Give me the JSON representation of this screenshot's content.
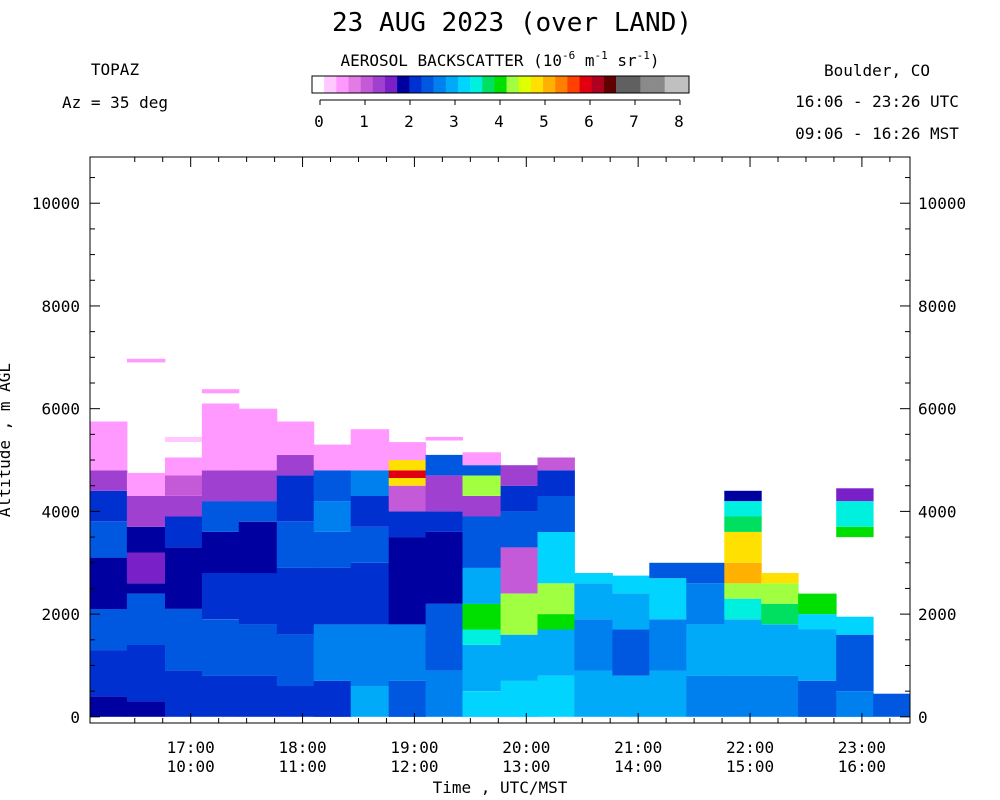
{
  "header": {
    "title": "23 AUG 2023 (over LAND)",
    "instrument": "TOPAZ",
    "azimuth": "Az =  35 deg",
    "location": "Boulder, CO",
    "utc_range": "16:06 - 23:26 UTC",
    "mst_range": "09:06 - 16:26 MST"
  },
  "colorbar": {
    "label_pre": "AEROSOL BACKSCATTER (10",
    "label_exp1": "-6",
    "label_mid1": " m",
    "label_exp2": "-1",
    "label_mid2": " sr",
    "label_exp3": "-1",
    "label_post": ")",
    "ticks": [
      "0",
      "1",
      "2",
      "3",
      "4",
      "5",
      "6",
      "7",
      "8"
    ],
    "colors": [
      "#ffffff",
      "#ffc8ff",
      "#ff99ff",
      "#e47ae4",
      "#c45ad8",
      "#a040d0",
      "#7a20c8",
      "#0000a0",
      "#0030d0",
      "#0058e0",
      "#0080ee",
      "#00aaf8",
      "#00d4ff",
      "#00f0e0",
      "#00e060",
      "#00e000",
      "#a0ff40",
      "#e0ff00",
      "#ffe000",
      "#ffb000",
      "#ff8000",
      "#ff4000",
      "#e00010",
      "#b00020",
      "#600000",
      "#606060",
      "#606060",
      "#8a8a8a",
      "#8a8a8a",
      "#c0c0c0",
      "#c0c0c0"
    ]
  },
  "axes": {
    "y_label": "Altitude , m AGL",
    "x_label": "Time , UTC/MST",
    "y_ticks": [
      "0",
      "2000",
      "4000",
      "6000",
      "8000",
      "10000"
    ],
    "x_ticks_utc": [
      "17:00",
      "18:00",
      "19:00",
      "20:00",
      "21:00",
      "22:00",
      "23:00"
    ],
    "x_ticks_mst": [
      "10:00",
      "11:00",
      "12:00",
      "13:00",
      "14:00",
      "15:00",
      "16:00"
    ]
  },
  "chart_data": {
    "type": "heatmap",
    "title": "23 AUG 2023 (over LAND)",
    "xlabel": "Time , UTC/MST",
    "ylabel": "Altitude , m AGL",
    "x_units": "hours UTC",
    "ylim": [
      0,
      11000
    ],
    "xlim": [
      16.1,
      23.43
    ],
    "zlim": [
      0,
      8
    ],
    "columns": [
      {
        "t0": 16.1,
        "t1": 16.43,
        "top": 5750,
        "layers": [
          [
            0,
            400,
            "#0000a0"
          ],
          [
            400,
            1300,
            "#0030d0"
          ],
          [
            1300,
            2100,
            "#0058e0"
          ],
          [
            2100,
            3100,
            "#0000a0"
          ],
          [
            3100,
            3800,
            "#0058e0"
          ],
          [
            3800,
            4400,
            "#0030d0"
          ],
          [
            4400,
            4800,
            "#a040d0"
          ],
          [
            4800,
            5750,
            "#ff99ff"
          ]
        ]
      },
      {
        "t0": 16.43,
        "t1": 16.77,
        "top": 4750,
        "layers": [
          [
            0,
            300,
            "#0000a0"
          ],
          [
            300,
            1400,
            "#0030d0"
          ],
          [
            1400,
            2400,
            "#0058e0"
          ],
          [
            2400,
            2600,
            "#0000a0"
          ],
          [
            2600,
            3200,
            "#7a20c8"
          ],
          [
            3200,
            3700,
            "#0000a0"
          ],
          [
            3700,
            4300,
            "#a040d0"
          ],
          [
            4300,
            4750,
            "#ff99ff"
          ]
        ],
        "extra": [
          [
            6900,
            6970,
            "#ff99ff"
          ]
        ]
      },
      {
        "t0": 16.77,
        "t1": 17.1,
        "top": 5050,
        "layers": [
          [
            0,
            900,
            "#0030d0"
          ],
          [
            900,
            2100,
            "#0058e0"
          ],
          [
            2100,
            3300,
            "#0000a0"
          ],
          [
            3300,
            3900,
            "#0030d0"
          ],
          [
            3900,
            4300,
            "#a040d0"
          ],
          [
            4300,
            4700,
            "#c45ad8"
          ],
          [
            4700,
            5050,
            "#ff99ff"
          ]
        ],
        "extra": [
          [
            5350,
            5450,
            "#ffc8ff"
          ]
        ]
      },
      {
        "t0": 17.1,
        "t1": 17.43,
        "top": 6100,
        "layers": [
          [
            0,
            800,
            "#0030d0"
          ],
          [
            800,
            1900,
            "#0058e0"
          ],
          [
            1900,
            2800,
            "#0030d0"
          ],
          [
            2800,
            3600,
            "#0000a0"
          ],
          [
            3600,
            4200,
            "#0058e0"
          ],
          [
            4200,
            4800,
            "#a040d0"
          ],
          [
            4800,
            6100,
            "#ff99ff"
          ]
        ],
        "extra": [
          [
            6300,
            6380,
            "#ff99ff"
          ]
        ]
      },
      {
        "t0": 17.43,
        "t1": 17.77,
        "top": 6000,
        "layers": [
          [
            0,
            800,
            "#0030d0"
          ],
          [
            800,
            1800,
            "#0058e0"
          ],
          [
            1800,
            2800,
            "#0030d0"
          ],
          [
            2800,
            3800,
            "#0000a0"
          ],
          [
            3800,
            4200,
            "#0058e0"
          ],
          [
            4200,
            4800,
            "#a040d0"
          ],
          [
            4800,
            6000,
            "#ff99ff"
          ]
        ]
      },
      {
        "t0": 17.77,
        "t1": 18.1,
        "top": 5750,
        "layers": [
          [
            0,
            600,
            "#0030d0"
          ],
          [
            600,
            1600,
            "#0058e0"
          ],
          [
            1600,
            2900,
            "#0030d0"
          ],
          [
            2900,
            3800,
            "#0058e0"
          ],
          [
            3800,
            4700,
            "#0030d0"
          ],
          [
            4700,
            5100,
            "#a040d0"
          ],
          [
            5100,
            5750,
            "#ff99ff"
          ]
        ]
      },
      {
        "t0": 18.1,
        "t1": 18.43,
        "top": 5300,
        "layers": [
          [
            0,
            700,
            "#0030d0"
          ],
          [
            700,
            1800,
            "#0080ee"
          ],
          [
            1800,
            2900,
            "#0030d0"
          ],
          [
            2900,
            3600,
            "#0058e0"
          ],
          [
            3600,
            4200,
            "#0080ee"
          ],
          [
            4200,
            4800,
            "#0058e0"
          ],
          [
            4800,
            5300,
            "#ff99ff"
          ]
        ]
      },
      {
        "t0": 18.43,
        "t1": 18.77,
        "top": 5600,
        "layers": [
          [
            0,
            600,
            "#00aaf8"
          ],
          [
            600,
            1800,
            "#0080ee"
          ],
          [
            1800,
            3000,
            "#0030d0"
          ],
          [
            3000,
            3700,
            "#0058e0"
          ],
          [
            3700,
            4300,
            "#0030d0"
          ],
          [
            4300,
            4800,
            "#0080ee"
          ],
          [
            4800,
            5600,
            "#ff99ff"
          ]
        ]
      },
      {
        "t0": 18.77,
        "t1": 19.1,
        "top": 5350,
        "layers": [
          [
            0,
            700,
            "#0058e0"
          ],
          [
            700,
            1800,
            "#0080ee"
          ],
          [
            1800,
            3500,
            "#0000a0"
          ],
          [
            3500,
            4000,
            "#0030d0"
          ],
          [
            4000,
            4500,
            "#c45ad8"
          ],
          [
            4500,
            4650,
            "#ffe000"
          ],
          [
            4650,
            4800,
            "#e00010"
          ],
          [
            4800,
            5000,
            "#ffe000"
          ],
          [
            5000,
            5350,
            "#ff99ff"
          ]
        ]
      },
      {
        "t0": 19.1,
        "t1": 19.43,
        "top": 5100,
        "layers": [
          [
            0,
            900,
            "#0080ee"
          ],
          [
            900,
            2200,
            "#0058e0"
          ],
          [
            2200,
            3600,
            "#0000a0"
          ],
          [
            3600,
            4000,
            "#0030d0"
          ],
          [
            4000,
            4700,
            "#a040d0"
          ],
          [
            4700,
            5100,
            "#0058e0"
          ]
        ],
        "extra": [
          [
            5380,
            5450,
            "#ff99ff"
          ]
        ]
      },
      {
        "t0": 19.43,
        "t1": 19.77,
        "top": 5150,
        "layers": [
          [
            0,
            500,
            "#00d4ff"
          ],
          [
            500,
            1400,
            "#00aaf8"
          ],
          [
            1400,
            1700,
            "#00f0e0"
          ],
          [
            1700,
            2200,
            "#00e000"
          ],
          [
            2200,
            2900,
            "#00aaf8"
          ],
          [
            2900,
            3900,
            "#0058e0"
          ],
          [
            3900,
            4300,
            "#a040d0"
          ],
          [
            4300,
            4700,
            "#a0ff40"
          ],
          [
            4700,
            4900,
            "#0058e0"
          ],
          [
            4900,
            5150,
            "#ff99ff"
          ]
        ]
      },
      {
        "t0": 19.77,
        "t1": 20.1,
        "top": 4900,
        "layers": [
          [
            0,
            700,
            "#00d4ff"
          ],
          [
            700,
            1600,
            "#00aaf8"
          ],
          [
            1600,
            2400,
            "#a0ff40"
          ],
          [
            2400,
            3300,
            "#c45ad8"
          ],
          [
            3300,
            4000,
            "#0058e0"
          ],
          [
            4000,
            4500,
            "#0030d0"
          ],
          [
            4500,
            4900,
            "#a040d0"
          ]
        ]
      },
      {
        "t0": 20.1,
        "t1": 20.43,
        "top": 5050,
        "layers": [
          [
            0,
            800,
            "#00d4ff"
          ],
          [
            800,
            1700,
            "#00aaf8"
          ],
          [
            1700,
            2000,
            "#00e000"
          ],
          [
            2000,
            2600,
            "#a0ff40"
          ],
          [
            2600,
            3600,
            "#00d4ff"
          ],
          [
            3600,
            4300,
            "#0058e0"
          ],
          [
            4300,
            4800,
            "#0030d0"
          ],
          [
            4800,
            5050,
            "#c45ad8"
          ]
        ]
      },
      {
        "t0": 20.43,
        "t1": 20.77,
        "top": 2800,
        "layers": [
          [
            0,
            900,
            "#00aaf8"
          ],
          [
            900,
            1900,
            "#0080ee"
          ],
          [
            1900,
            2600,
            "#00aaf8"
          ],
          [
            2600,
            2800,
            "#00d4ff"
          ]
        ]
      },
      {
        "t0": 20.77,
        "t1": 21.1,
        "top": 2750,
        "layers": [
          [
            0,
            800,
            "#00aaf8"
          ],
          [
            800,
            1700,
            "#0058e0"
          ],
          [
            1700,
            2400,
            "#00aaf8"
          ],
          [
            2400,
            2750,
            "#00d4ff"
          ]
        ]
      },
      {
        "t0": 21.1,
        "t1": 21.43,
        "top": 3000,
        "layers": [
          [
            0,
            900,
            "#00aaf8"
          ],
          [
            900,
            1900,
            "#0080ee"
          ],
          [
            1900,
            2700,
            "#00d4ff"
          ],
          [
            2700,
            3000,
            "#0058e0"
          ]
        ]
      },
      {
        "t0": 21.43,
        "t1": 21.77,
        "top": 3000,
        "layers": [
          [
            0,
            800,
            "#0080ee"
          ],
          [
            800,
            1800,
            "#00aaf8"
          ],
          [
            1800,
            2600,
            "#0080ee"
          ],
          [
            2600,
            3000,
            "#0058e0"
          ]
        ]
      },
      {
        "t0": 21.77,
        "t1": 22.1,
        "top": 4400,
        "layers": [
          [
            0,
            800,
            "#0080ee"
          ],
          [
            800,
            1900,
            "#00aaf8"
          ],
          [
            1900,
            2300,
            "#00f0e0"
          ],
          [
            2300,
            2600,
            "#a0ff40"
          ],
          [
            2600,
            3000,
            "#ffb000"
          ],
          [
            3000,
            3600,
            "#ffe000"
          ],
          [
            3600,
            3900,
            "#00e060"
          ],
          [
            3900,
            4200,
            "#00f0e0"
          ],
          [
            4200,
            4400,
            "#0000a0"
          ]
        ]
      },
      {
        "t0": 22.1,
        "t1": 22.43,
        "top": 2800,
        "layers": [
          [
            0,
            800,
            "#0080ee"
          ],
          [
            800,
            1800,
            "#00aaf8"
          ],
          [
            1800,
            2200,
            "#00e060"
          ],
          [
            2200,
            2600,
            "#a0ff40"
          ],
          [
            2600,
            2800,
            "#ffe000"
          ]
        ]
      },
      {
        "t0": 22.43,
        "t1": 22.77,
        "top": 2400,
        "layers": [
          [
            0,
            700,
            "#0058e0"
          ],
          [
            700,
            1700,
            "#00aaf8"
          ],
          [
            1700,
            2000,
            "#00d4ff"
          ],
          [
            2000,
            2400,
            "#00e000"
          ]
        ]
      },
      {
        "t0": 22.77,
        "t1": 23.1,
        "top": 1950,
        "layers": [
          [
            0,
            500,
            "#0080ee"
          ],
          [
            500,
            1600,
            "#0058e0"
          ],
          [
            1600,
            1950,
            "#00d4ff"
          ]
        ],
        "extra": [
          [
            3500,
            3700,
            "#00e000"
          ],
          [
            3700,
            4200,
            "#00f0e0"
          ],
          [
            4200,
            4450,
            "#7a20c8"
          ]
        ]
      },
      {
        "t0": 23.1,
        "t1": 23.43,
        "top": 450,
        "layers": [
          [
            0,
            450,
            "#0058e0"
          ]
        ]
      }
    ]
  }
}
